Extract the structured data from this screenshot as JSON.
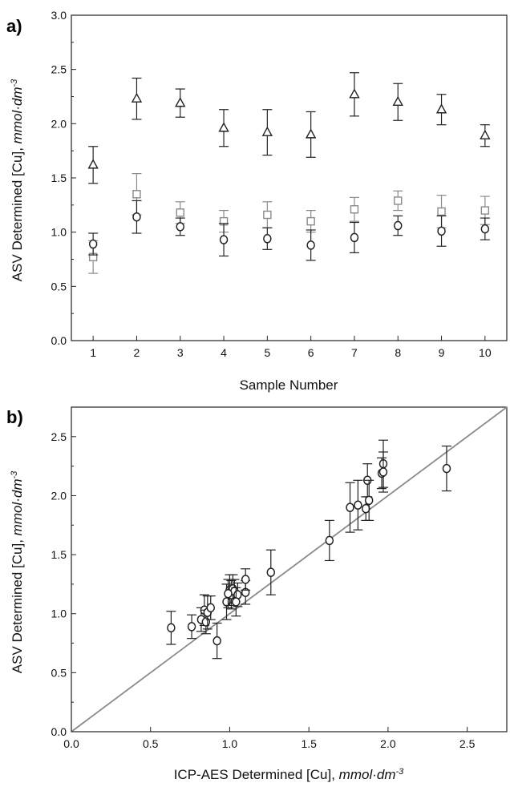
{
  "colors": {
    "triangle": "#222222",
    "circle": "#222222",
    "square": "#8a8a8a",
    "line": "#8a8a8a",
    "axis": "#222222"
  },
  "chart_data": [
    {
      "panel_label": "a)",
      "type": "scatter",
      "title": "",
      "xlabel": "Sample Number",
      "ylabel_main": "ASV Determined [Cu], ",
      "ylabel_unit": "mmol·dm",
      "ylabel_exp": "-3",
      "xlim": [
        0.5,
        10.5
      ],
      "ylim": [
        0.0,
        3.0
      ],
      "xticks": [
        1,
        2,
        3,
        4,
        5,
        6,
        7,
        8,
        9,
        10
      ],
      "xtick_labels": [
        "1",
        "2",
        "3",
        "4",
        "5",
        "6",
        "7",
        "8",
        "9",
        "10"
      ],
      "yticks": [
        0.0,
        0.5,
        1.0,
        1.5,
        2.0,
        2.5,
        3.0
      ],
      "ytick_labels": [
        "0.0",
        "0.5",
        "1.0",
        "1.5",
        "2.0",
        "2.5",
        "3.0"
      ],
      "grid": false,
      "legend": "none",
      "series": [
        {
          "marker": "triangle",
          "color": "#222222",
          "x": [
            1,
            2,
            3,
            4,
            5,
            6,
            7,
            8,
            9,
            10
          ],
          "y": [
            1.62,
            2.23,
            2.19,
            1.96,
            1.92,
            1.9,
            2.27,
            2.2,
            2.13,
            1.89
          ],
          "err": [
            0.17,
            0.19,
            0.13,
            0.17,
            0.21,
            0.21,
            0.2,
            0.17,
            0.14,
            0.1
          ]
        },
        {
          "marker": "square",
          "color": "#8a8a8a",
          "x": [
            1,
            2,
            3,
            4,
            5,
            6,
            7,
            8,
            9,
            10
          ],
          "y": [
            0.77,
            1.35,
            1.18,
            1.1,
            1.16,
            1.1,
            1.21,
            1.29,
            1.19,
            1.2
          ],
          "err": [
            0.15,
            0.19,
            0.1,
            0.1,
            0.12,
            0.1,
            0.11,
            0.09,
            0.15,
            0.13
          ]
        },
        {
          "marker": "circle",
          "color": "#222222",
          "x": [
            1,
            2,
            3,
            4,
            5,
            6,
            7,
            8,
            9,
            10
          ],
          "y": [
            0.89,
            1.14,
            1.05,
            0.93,
            0.94,
            0.88,
            0.95,
            1.06,
            1.01,
            1.03
          ],
          "err": [
            0.1,
            0.15,
            0.08,
            0.15,
            0.1,
            0.14,
            0.14,
            0.09,
            0.14,
            0.1
          ]
        }
      ]
    },
    {
      "panel_label": "b)",
      "type": "scatter",
      "title": "",
      "xlabel_main": "ICP-AES Determined [Cu], ",
      "xlabel_unit": "mmol·dm",
      "xlabel_exp": "-3",
      "ylabel_main": "ASV Determined [Cu], ",
      "ylabel_unit": "mmol·dm",
      "ylabel_exp": "-3",
      "xlim": [
        0.0,
        2.75
      ],
      "ylim": [
        0.0,
        2.75
      ],
      "xticks": [
        0.0,
        0.5,
        1.0,
        1.5,
        2.0,
        2.5
      ],
      "xtick_labels": [
        "0.0",
        "0.5",
        "1.0",
        "1.5",
        "2.0",
        "2.5"
      ],
      "yticks": [
        0.0,
        0.5,
        1.0,
        1.5,
        2.0,
        2.5
      ],
      "ytick_labels": [
        "0.0",
        "0.5",
        "1.0",
        "1.5",
        "2.0",
        "2.5"
      ],
      "grid": false,
      "legend": "none",
      "reference_line": {
        "slope": 1,
        "intercept": 0
      },
      "series": [
        {
          "marker": "circle",
          "color": "#222222",
          "x": [
            0.63,
            0.76,
            0.82,
            0.84,
            0.85,
            0.86,
            0.88,
            0.92,
            0.98,
            1.0,
            1.01,
            1.02,
            1.03,
            1.05,
            1.1,
            1.1,
            1.26,
            1.63,
            1.76,
            1.81,
            1.86,
            1.87,
            1.88,
            1.96,
            1.97,
            1.97,
            2.37,
            0.99,
            1.04
          ],
          "y": [
            0.88,
            0.89,
            0.95,
            1.03,
            0.93,
            1.01,
            1.05,
            0.77,
            1.1,
            1.2,
            1.16,
            1.21,
            1.19,
            1.16,
            1.18,
            1.29,
            1.35,
            1.62,
            1.9,
            1.92,
            1.89,
            2.13,
            1.96,
            2.19,
            2.27,
            2.2,
            2.23,
            1.17,
            1.1
          ],
          "err": [
            0.14,
            0.1,
            0.1,
            0.13,
            0.1,
            0.14,
            0.1,
            0.15,
            0.15,
            0.13,
            0.12,
            0.12,
            0.1,
            0.1,
            0.1,
            0.09,
            0.19,
            0.17,
            0.21,
            0.21,
            0.1,
            0.14,
            0.17,
            0.13,
            0.2,
            0.17,
            0.19,
            0.12,
            0.12
          ]
        }
      ]
    }
  ]
}
